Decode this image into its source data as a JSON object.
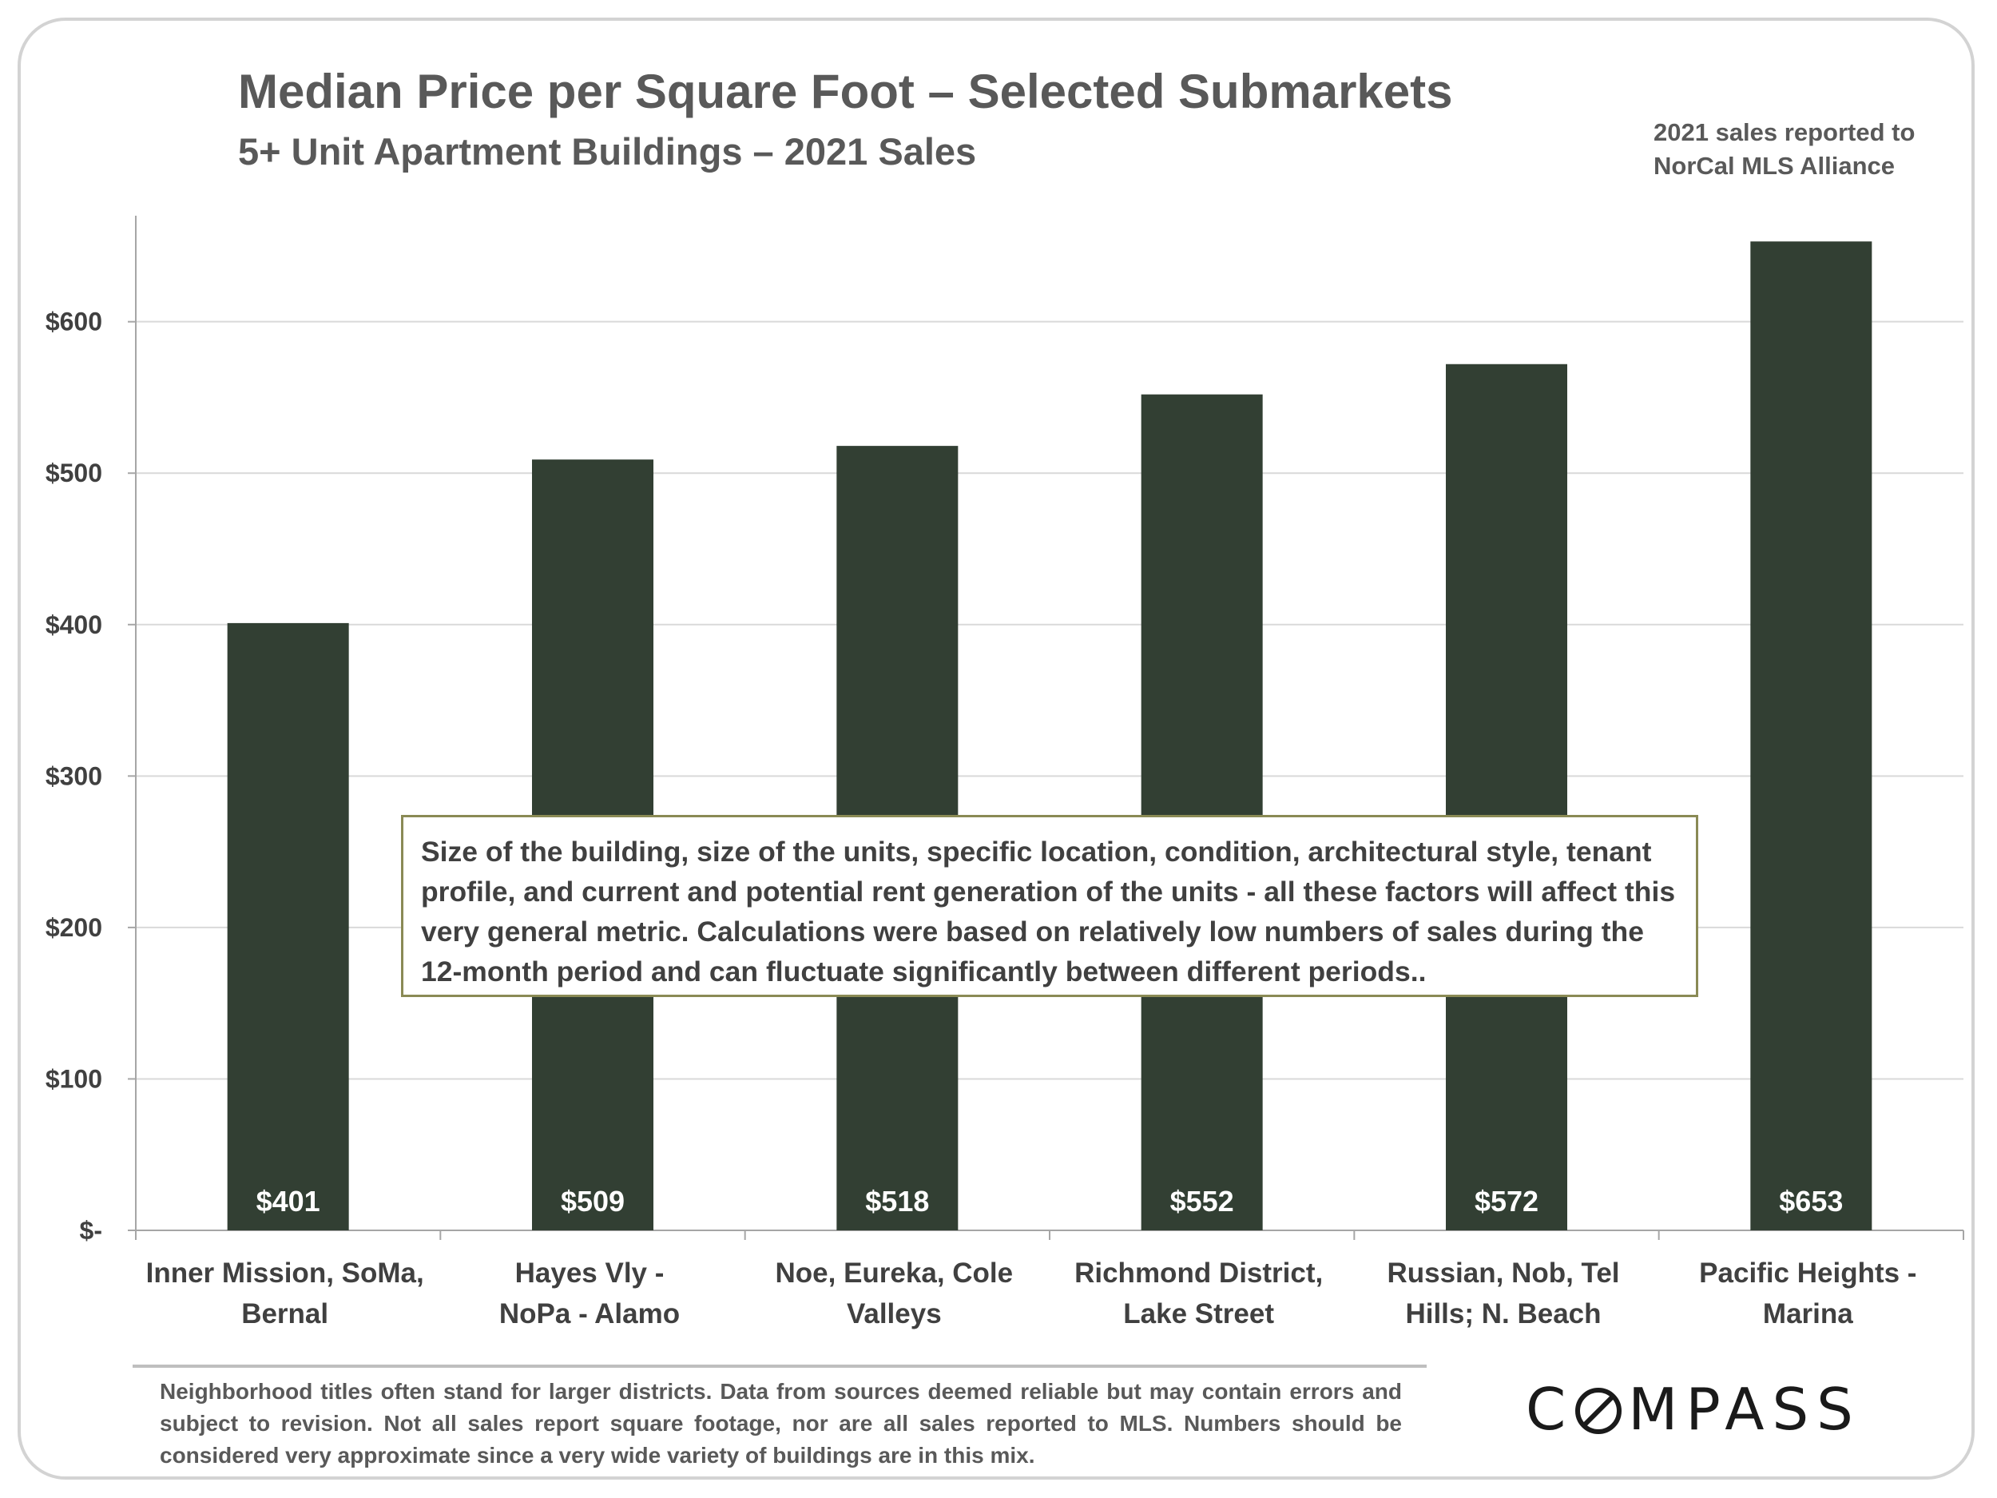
{
  "header": {
    "title": "Median Price per Square Foot – Selected Submarkets",
    "subtitle": "5+ Unit Apartment Buildings – 2021 Sales",
    "source_line1": "2021 sales reported to",
    "source_line2": "NorCal MLS Alliance"
  },
  "chart_data": {
    "type": "bar",
    "title": "Median Price per Square Foot – Selected Submarkets",
    "subtitle": "5+ Unit Apartment Buildings – 2021 Sales",
    "categories": [
      [
        "Inner Mission, SoMa,",
        "Bernal"
      ],
      [
        "Hayes Vly -",
        "NoPa - Alamo"
      ],
      [
        "Noe, Eureka, Cole",
        "Valleys"
      ],
      [
        "Richmond District,",
        "Lake Street"
      ],
      [
        "Russian, Nob, Tel",
        "Hills; N. Beach"
      ],
      [
        "Pacific Heights -",
        "Marina"
      ]
    ],
    "values": [
      401,
      509,
      518,
      552,
      572,
      653
    ],
    "data_labels": [
      "$401",
      "$509",
      "$518",
      "$552",
      "$572",
      "$653"
    ],
    "ylim": [
      0,
      670
    ],
    "yticks": [
      0,
      100,
      200,
      300,
      400,
      500,
      600
    ],
    "ytick_labels": [
      "$-",
      "$100",
      "$200",
      "$300",
      "$400",
      "$500",
      "$600"
    ],
    "xlabel": "",
    "ylabel": "",
    "grid": true,
    "bar_color": "#323f33"
  },
  "note": {
    "text": "Size of the building, size of the units, specific location, condition, architectural style, tenant profile, and current and potential rent generation of the units - all these factors will affect this very general metric. Calculations were based on relatively low numbers of sales during the 12-month period and can fluctuate significantly between different periods.."
  },
  "footer": {
    "text": "Neighborhood titles often stand for larger districts. Data from sources deemed reliable but may contain errors and subject to revision. Not all sales report square footage, nor are all sales reported to MLS. Numbers should be considered very approximate since a very wide variety of buildings are in this mix."
  },
  "logo": {
    "prefix": "C",
    "suffix": "MPASS"
  }
}
